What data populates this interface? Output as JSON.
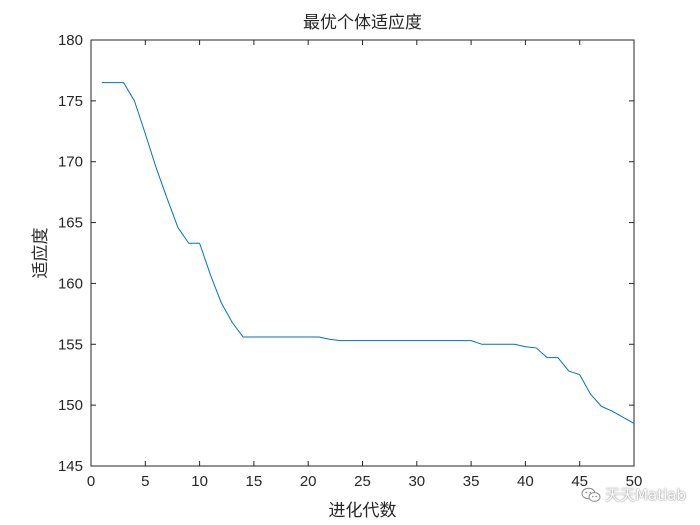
{
  "chart_data": {
    "type": "line",
    "title": "最优个体适应度",
    "xlabel": "进化代数",
    "ylabel": "适应度",
    "xlim": [
      0,
      50
    ],
    "ylim": [
      145,
      180
    ],
    "xticks": [
      0,
      5,
      10,
      15,
      20,
      25,
      30,
      35,
      40,
      45,
      50
    ],
    "yticks": [
      145,
      150,
      155,
      160,
      165,
      170,
      175,
      180
    ],
    "grid": false,
    "box": true,
    "line_color": "#0072BD",
    "axis_color": "#262626",
    "series": [
      {
        "x": [
          1,
          2,
          3,
          4,
          5,
          6,
          7,
          8,
          9,
          10,
          11,
          12,
          13,
          14,
          15,
          16,
          17,
          18,
          19,
          20,
          21,
          22,
          23,
          24,
          25,
          26,
          27,
          28,
          29,
          30,
          31,
          32,
          33,
          34,
          35,
          36,
          37,
          38,
          39,
          40,
          41,
          42,
          43,
          44,
          45,
          46,
          47,
          48,
          49,
          50
        ],
        "y": [
          176.5,
          176.5,
          176.5,
          175.0,
          172.3,
          169.5,
          167.0,
          164.6,
          163.3,
          163.3,
          160.7,
          158.4,
          156.8,
          155.6,
          155.6,
          155.6,
          155.6,
          155.6,
          155.6,
          155.6,
          155.6,
          155.4,
          155.3,
          155.3,
          155.3,
          155.3,
          155.3,
          155.3,
          155.3,
          155.3,
          155.3,
          155.3,
          155.3,
          155.3,
          155.3,
          155.0,
          155.0,
          155.0,
          155.0,
          154.8,
          154.7,
          153.9,
          153.9,
          152.8,
          152.5,
          150.9,
          149.9,
          149.5,
          149.0,
          148.5
        ]
      }
    ]
  },
  "watermark": {
    "icon": "wechat-icon",
    "text": "天天Matlab"
  }
}
